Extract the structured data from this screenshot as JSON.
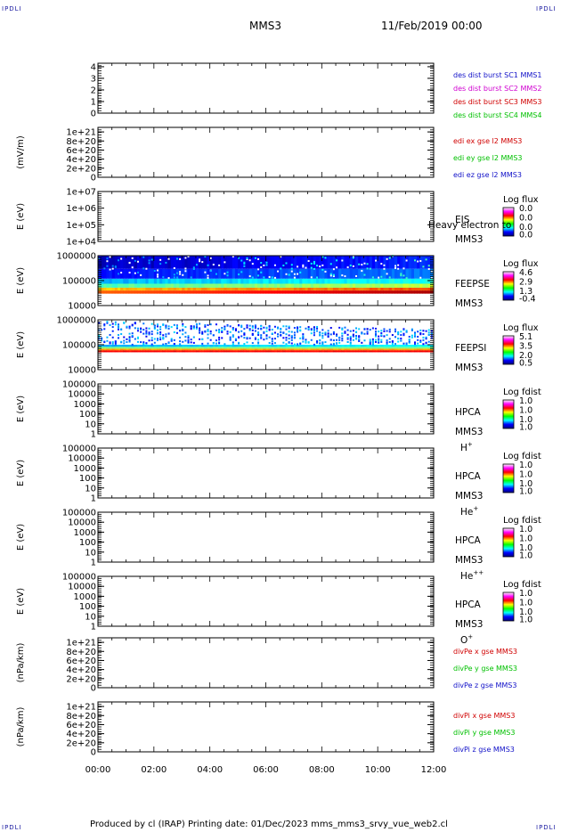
{
  "header": {
    "corner_tl": "IPDLI",
    "corner_tr": "IPDLI",
    "corner_bl": "IPDLI",
    "corner_br": "IPDLI",
    "title": "MMS3",
    "datetime": "11/Feb/2019 00:00"
  },
  "footer": {
    "text": "Produced by cl (IRAP)   Printing date: 01/Dec/2023   mms_mms3_srvy_vue_web2.cl"
  },
  "colors": {
    "blue": "#1010c8",
    "red": "#d00000",
    "green": "#00c000",
    "magenta": "#d000d0"
  },
  "chart_data": {
    "type": "multi-panel time series / spectrogram",
    "x_ticks": [
      "00:00",
      "02:00",
      "04:00",
      "06:00",
      "08:00",
      "10:00",
      "12:00"
    ],
    "panels": [
      {
        "id": "p1",
        "type": "line",
        "ylabel": "",
        "yticks": [
          "4",
          "3",
          "2",
          "1",
          "0"
        ],
        "ylim": [
          0,
          4.3
        ],
        "legend": [
          {
            "text": "des dist burst SC1 MMS1",
            "color": "#1010c8"
          },
          {
            "text": "des dist burst SC2 MMS2",
            "color": "#d000d0"
          },
          {
            "text": "des dist burst SC3 MMS3",
            "color": "#d00000"
          },
          {
            "text": "des dist burst SC4 MMS4",
            "color": "#00c000"
          }
        ],
        "hline": {
          "y": 0,
          "color": "#1010c8",
          "style": "solid"
        }
      },
      {
        "id": "p2",
        "type": "line",
        "ylabel": "(mV/m)",
        "yticks": [
          "1e+21",
          "8e+20",
          "6e+20",
          "4e+20",
          "2e+20",
          "0"
        ],
        "ylim": [
          0,
          1.1e+21
        ],
        "legend": [
          {
            "text": "edi ex gse l2 MMS3",
            "color": "#d00000"
          },
          {
            "text": "edi ey gse l2 MMS3",
            "color": "#00c000"
          },
          {
            "text": "edi ez gse l2 MMS3",
            "color": "#1010c8"
          }
        ],
        "hline": {
          "y": 0,
          "color": "#000",
          "style": "dashed"
        }
      },
      {
        "id": "p3",
        "type": "spectrogram",
        "ylabel": "E (eV)",
        "yticks": [
          "1e+07",
          "1e+06",
          "1e+05",
          "1e+04"
        ],
        "ylim": [
          10000.0,
          10000000.0
        ],
        "labels": [
          "EIS",
          "MMS3"
        ],
        "overlay": "Heavy electron to",
        "colorbar": {
          "title": "Log flux",
          "ticks": [
            "0.0",
            "0.0",
            "0.0",
            "0.0"
          ]
        }
      },
      {
        "id": "p4",
        "type": "spectrogram",
        "ylabel": "E (eV)",
        "yticks": [
          "1000000",
          "100000",
          "10000"
        ],
        "ylim": [
          10000.0,
          1000000.0
        ],
        "labels": [
          "FEEPSE",
          "MMS3"
        ],
        "colorbar": {
          "title": "Log flux",
          "ticks": [
            "4.6",
            "2.9",
            "1.3",
            "-0.4"
          ]
        }
      },
      {
        "id": "p5",
        "type": "spectrogram",
        "ylabel": "E (eV)",
        "yticks": [
          "1000000",
          "100000",
          "10000"
        ],
        "ylim": [
          10000.0,
          1000000.0
        ],
        "labels": [
          "FEEPSI",
          "MMS3"
        ],
        "colorbar": {
          "title": "Log flux",
          "ticks": [
            "5.1",
            "3.5",
            "2.0",
            "0.5"
          ]
        }
      },
      {
        "id": "p6",
        "type": "spectrogram",
        "ylabel": "E (eV)",
        "yticks": [
          "100000",
          "10000",
          "1000",
          "100",
          "10",
          "1"
        ],
        "ylim": [
          1,
          100000.0
        ],
        "labels": [
          "HPCA",
          "MMS3"
        ],
        "species": "H",
        "sup": "+",
        "colorbar": {
          "title": "Log fdist",
          "ticks": [
            "1.0",
            "1.0",
            "1.0",
            "1.0"
          ]
        }
      },
      {
        "id": "p7",
        "type": "spectrogram",
        "ylabel": "E (eV)",
        "yticks": [
          "100000",
          "10000",
          "1000",
          "100",
          "10",
          "1"
        ],
        "ylim": [
          1,
          100000.0
        ],
        "labels": [
          "HPCA",
          "MMS3"
        ],
        "species": "He",
        "sup": "+",
        "colorbar": {
          "title": "Log fdist",
          "ticks": [
            "1.0",
            "1.0",
            "1.0",
            "1.0"
          ]
        }
      },
      {
        "id": "p8",
        "type": "spectrogram",
        "ylabel": "E (eV)",
        "yticks": [
          "100000",
          "10000",
          "1000",
          "100",
          "10",
          "1"
        ],
        "ylim": [
          1,
          100000.0
        ],
        "labels": [
          "HPCA",
          "MMS3"
        ],
        "species": "He",
        "sup": "++",
        "colorbar": {
          "title": "Log fdist",
          "ticks": [
            "1.0",
            "1.0",
            "1.0",
            "1.0"
          ]
        }
      },
      {
        "id": "p9",
        "type": "spectrogram",
        "ylabel": "E (eV)",
        "yticks": [
          "100000",
          "10000",
          "1000",
          "100",
          "10",
          "1"
        ],
        "ylim": [
          1,
          100000.0
        ],
        "labels": [
          "HPCA",
          "MMS3"
        ],
        "species": "O",
        "sup": "+",
        "colorbar": {
          "title": "Log fdist",
          "ticks": [
            "1.0",
            "1.0",
            "1.0",
            "1.0"
          ]
        }
      },
      {
        "id": "p10",
        "type": "line",
        "ylabel": "(nPa/km)",
        "yticks": [
          "1e+21",
          "8e+20",
          "6e+20",
          "4e+20",
          "2e+20",
          "0"
        ],
        "ylim": [
          0,
          1.1e+21
        ],
        "legend": [
          {
            "text": "divPe x gse MMS3",
            "color": "#d00000"
          },
          {
            "text": "divPe y gse MMS3",
            "color": "#00c000"
          },
          {
            "text": "divPe z gse MMS3",
            "color": "#1010c8"
          }
        ],
        "hline": {
          "y": 0,
          "color": "#000",
          "style": "dashed"
        }
      },
      {
        "id": "p11",
        "type": "line",
        "ylabel": "(nPa/km)",
        "yticks": [
          "1e+21",
          "8e+20",
          "6e+20",
          "4e+20",
          "2e+20",
          "0"
        ],
        "ylim": [
          0,
          1.1e+21
        ],
        "legend": [
          {
            "text": "divPi x gse MMS3",
            "color": "#d00000"
          },
          {
            "text": "divPi y gse MMS3",
            "color": "#00c000"
          },
          {
            "text": "divPi z gse MMS3",
            "color": "#1010c8"
          }
        ],
        "hline": {
          "y": 0,
          "color": "#000",
          "style": "dashed"
        }
      }
    ]
  }
}
